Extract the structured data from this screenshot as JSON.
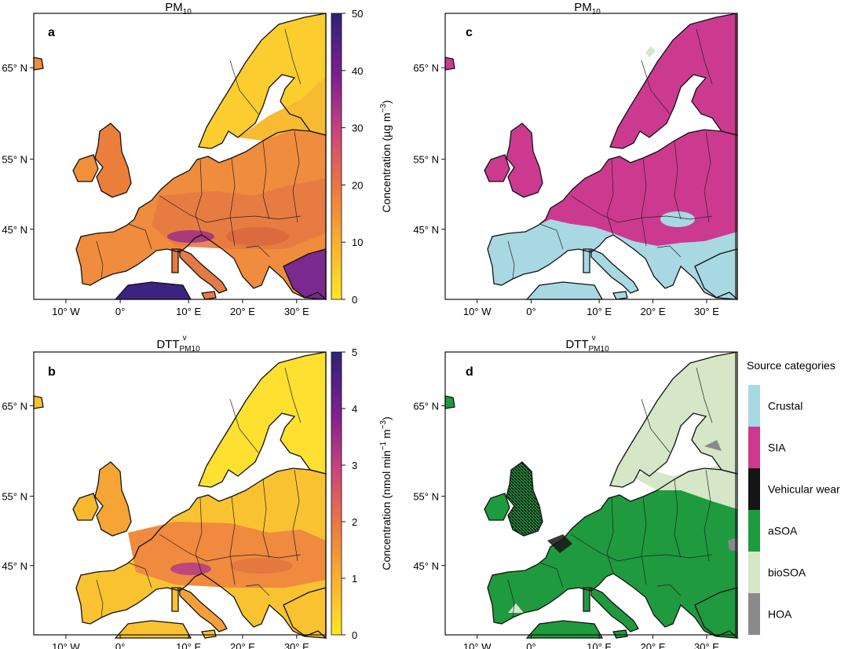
{
  "panels": [
    {
      "id": "a",
      "letter": "a",
      "title_main": "PM",
      "title_sub": "10",
      "title_sup": "",
      "mode": "conc"
    },
    {
      "id": "b",
      "letter": "b",
      "title_main": "DTT",
      "title_sub": "PM10",
      "title_sup": "v",
      "mode": "dtt"
    },
    {
      "id": "c",
      "letter": "c",
      "title_main": "PM",
      "title_sub": "10",
      "title_sup": "",
      "mode": "srcpm"
    },
    {
      "id": "d",
      "letter": "d",
      "title_main": "DTT",
      "title_sub": "PM10",
      "title_sup": "v",
      "mode": "srcdtt"
    }
  ],
  "axes": {
    "lon_ticks": [
      "10° W",
      "0°",
      "10° E",
      "20° E",
      "30° E"
    ],
    "lat_ticks": [
      "65° N",
      "55° N",
      "45° N"
    ]
  },
  "colorbars": [
    {
      "id": "pm10",
      "label": "Concentration (µg m",
      "label_sup": "−3",
      "label_end": ")",
      "min": 0,
      "max": 50,
      "ticks": [
        "0",
        "10",
        "20",
        "30",
        "40",
        "50"
      ]
    },
    {
      "id": "dtt",
      "label": "Concentration (nmol min",
      "label_sup": "−1",
      "label_mid": " m",
      "label_sup2": "−3",
      "label_end": ")",
      "min": 0,
      "max": 5,
      "ticks": [
        "0",
        "1",
        "2",
        "3",
        "4",
        "5"
      ]
    }
  ],
  "legend": {
    "title": "Source categories",
    "items": [
      {
        "label": "Crustal",
        "color": "#a8d8e2"
      },
      {
        "label": "SIA",
        "color": "#cc3a90"
      },
      {
        "label": "Vehicular wear",
        "color": "#151515"
      },
      {
        "label": "aSOA",
        "color": "#1f9a3e"
      },
      {
        "label": "bioSOA",
        "color": "#d5e7c6"
      },
      {
        "label": "HOA",
        "color": "#8a8a8a"
      }
    ]
  },
  "colors": {
    "land_low": "#fde636",
    "land_mid": "#ef8836",
    "land_high": "#c1467f",
    "land_max": "#34247e",
    "crustal": "#a8d8e2",
    "sia": "#cc3a90",
    "vehicular": "#151515",
    "asoa": "#1f9a3e",
    "biosoa": "#d5e7c6",
    "hoa": "#8a8a8a"
  }
}
